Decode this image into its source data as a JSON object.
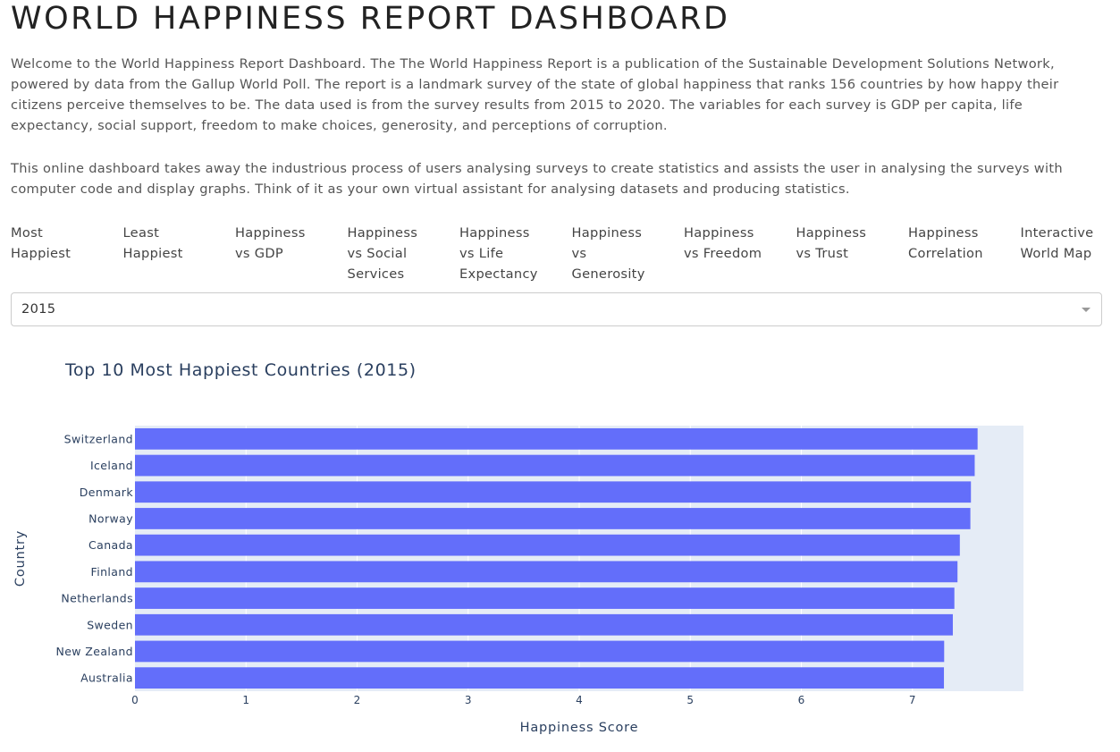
{
  "header": {
    "title": "WORLD HAPPINESS REPORT DASHBOARD"
  },
  "intro": {
    "paragraph1": "Welcome to the World Happiness Report Dashboard. The The World Happiness Report is a publication of the Sustainable Development Solutions Network, powered by data from the Gallup World Poll. The report is a landmark survey of the state of global happiness that ranks 156 countries by how happy their citizens perceive themselves to be. The data used is from the survey results from 2015 to 2020. The variables for each survey is GDP per capita, life expectancy, social support, freedom to make choices, generosity, and perceptions of corruption.",
    "paragraph2": "This online dashboard takes away the industrious process of users analysing surveys to create statistics and assists the user in analysing the surveys with computer code and display graphs. Think of it as your own virtual assistant for analysing datasets and producing statistics."
  },
  "tabs": [
    {
      "id": "most-happiest",
      "lines": [
        "Most",
        "Happiest"
      ]
    },
    {
      "id": "least-happiest",
      "lines": [
        "Least",
        "Happiest"
      ]
    },
    {
      "id": "happiness-vs-gdp",
      "lines": [
        "Happiness",
        "vs GDP"
      ]
    },
    {
      "id": "happiness-vs-social-services",
      "lines": [
        "Happiness",
        "vs Social",
        "Services"
      ]
    },
    {
      "id": "happiness-vs-life-expectancy",
      "lines": [
        "Happiness",
        "vs Life",
        "Expectancy"
      ]
    },
    {
      "id": "happiness-vs-generosity",
      "lines": [
        "Happiness",
        "vs",
        "Generosity"
      ]
    },
    {
      "id": "happiness-vs-freedom",
      "lines": [
        "Happiness",
        "vs Freedom"
      ]
    },
    {
      "id": "happiness-vs-trust",
      "lines": [
        "Happiness",
        "vs Trust"
      ]
    },
    {
      "id": "happiness-correlation",
      "lines": [
        "Happiness",
        "Correlation"
      ]
    },
    {
      "id": "interactive-world-map",
      "lines": [
        "Interactive",
        "World Map"
      ]
    }
  ],
  "year_dropdown": {
    "selected": "2015"
  },
  "colors": {
    "bar": "#636efa",
    "plot_bg": "#e5ecf6",
    "text": "#2a3f5f"
  },
  "chart_data": {
    "type": "bar",
    "orientation": "horizontal",
    "title": "Top 10 Most Happiest Countries (2015)",
    "xlabel": "Happiness Score",
    "ylabel": "Country",
    "categories": [
      "Switzerland",
      "Iceland",
      "Denmark",
      "Norway",
      "Canada",
      "Finland",
      "Netherlands",
      "Sweden",
      "New Zealand",
      "Australia"
    ],
    "values": [
      7.587,
      7.561,
      7.527,
      7.522,
      7.427,
      7.406,
      7.378,
      7.364,
      7.286,
      7.284
    ],
    "xlim": [
      0,
      8
    ],
    "xticks": [
      0,
      1,
      2,
      3,
      4,
      5,
      6,
      7
    ],
    "grid": true,
    "legend": "none"
  }
}
